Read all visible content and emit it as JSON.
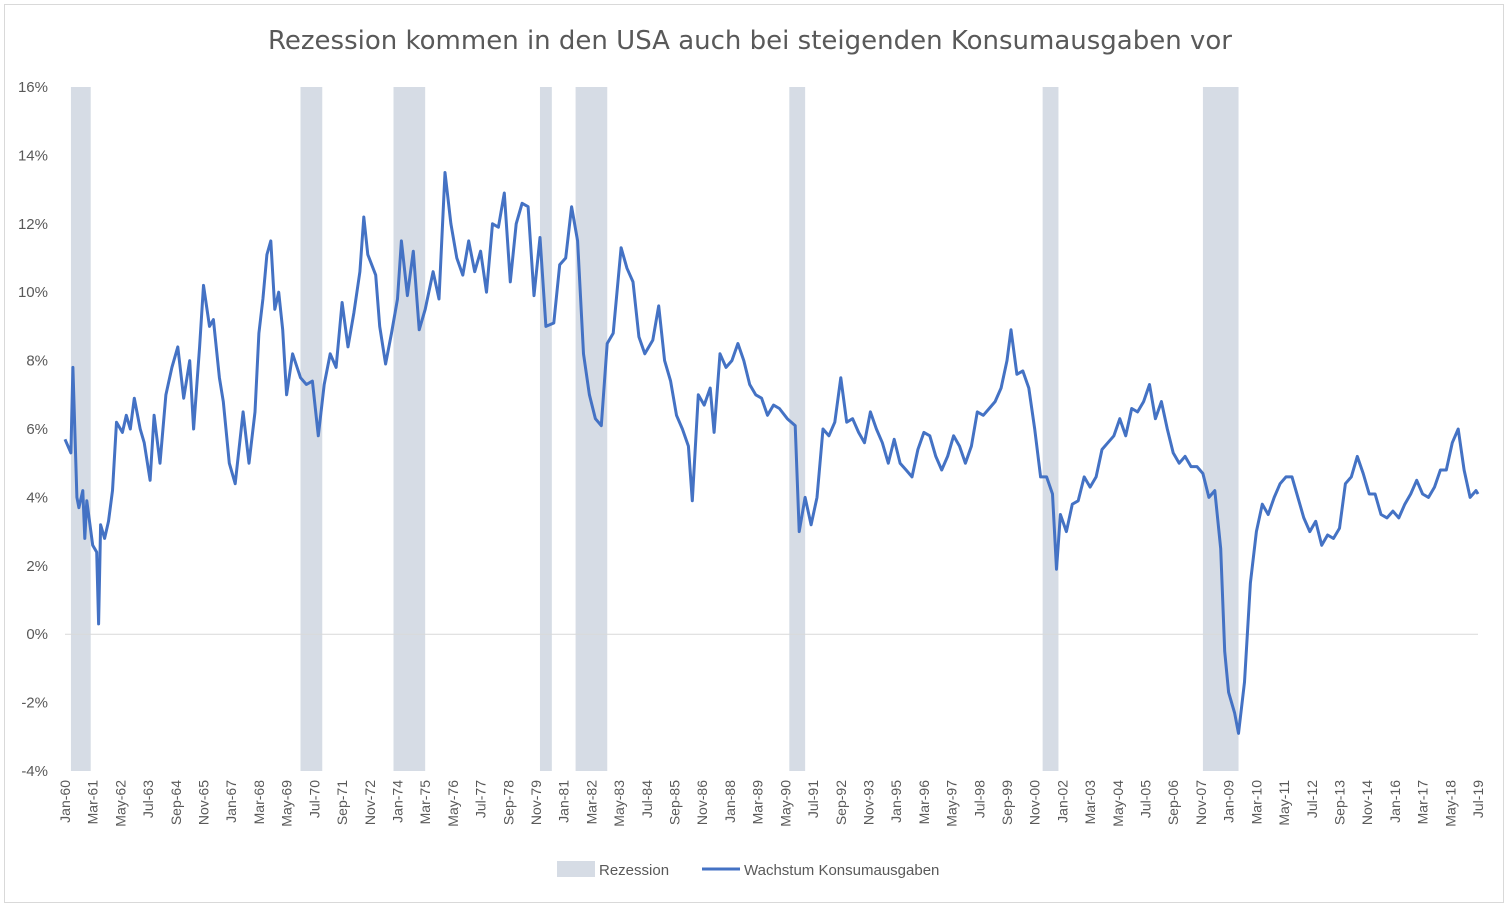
{
  "chart_data": {
    "type": "line",
    "title": "Rezession kommen in den USA auch bei steigenden Konsumausgaben vor",
    "xlabel": "",
    "ylabel": "",
    "ylim": [
      -4,
      16
    ],
    "y_ticks": [
      "16%",
      "14%",
      "12%",
      "10%",
      "8%",
      "6%",
      "4%",
      "2%",
      "0%",
      "-2%",
      "-4%"
    ],
    "x_range": [
      "1960-01",
      "2019-07"
    ],
    "x_ticks": [
      "Jan-60",
      "Mar-61",
      "May-62",
      "Jul-63",
      "Sep-64",
      "Nov-65",
      "Jan-67",
      "Mar-68",
      "May-69",
      "Jul-70",
      "Sep-71",
      "Nov-72",
      "Jan-74",
      "Mar-75",
      "May-76",
      "Jul-77",
      "Sep-78",
      "Nov-79",
      "Jan-81",
      "Mar-82",
      "May-83",
      "Jul-84",
      "Sep-85",
      "Nov-86",
      "Jan-88",
      "Mar-89",
      "May-90",
      "Jul-91",
      "Sep-92",
      "Nov-93",
      "Jan-95",
      "Mar-96",
      "May-97",
      "Jul-98",
      "Sep-99",
      "Nov-00",
      "Jan-02",
      "Mar-03",
      "May-04",
      "Jul-05",
      "Sep-06",
      "Nov-07",
      "Jan-09",
      "Mar-10",
      "May-11",
      "Jul-12",
      "Sep-13",
      "Nov-14",
      "Jan-16",
      "Mar-17",
      "May-18",
      "Jul-19"
    ],
    "grid": "zero-line-only",
    "legend_position": "bottom",
    "series": [
      {
        "name": "Rezession",
        "type": "shaded-periods",
        "color": "#d6dce5",
        "periods": [
          [
            "1960-04",
            "1961-02"
          ],
          [
            "1969-12",
            "1970-11"
          ],
          [
            "1973-11",
            "1975-03"
          ],
          [
            "1980-01",
            "1980-07"
          ],
          [
            "1981-07",
            "1982-11"
          ],
          [
            "1990-07",
            "1991-03"
          ],
          [
            "2001-03",
            "2001-11"
          ],
          [
            "2007-12",
            "2009-06"
          ]
        ]
      },
      {
        "name": "Wachstum Konsumausgaben",
        "type": "line",
        "color": "#4472c4",
        "points": [
          [
            "1960-01",
            5.7
          ],
          [
            "1960-04",
            5.3
          ],
          [
            "1960-05",
            7.8
          ],
          [
            "1960-07",
            4.0
          ],
          [
            "1960-08",
            3.7
          ],
          [
            "1960-10",
            4.2
          ],
          [
            "1960-11",
            2.8
          ],
          [
            "1960-12",
            3.9
          ],
          [
            "1961-03",
            2.6
          ],
          [
            "1961-05",
            2.4
          ],
          [
            "1961-06",
            0.3
          ],
          [
            "1961-07",
            3.2
          ],
          [
            "1961-09",
            2.8
          ],
          [
            "1961-11",
            3.3
          ],
          [
            "1962-01",
            4.2
          ],
          [
            "1962-03",
            6.2
          ],
          [
            "1962-06",
            5.9
          ],
          [
            "1962-08",
            6.4
          ],
          [
            "1962-10",
            6.0
          ],
          [
            "1962-12",
            6.9
          ],
          [
            "1963-03",
            6.0
          ],
          [
            "1963-05",
            5.6
          ],
          [
            "1963-08",
            4.5
          ],
          [
            "1963-10",
            6.4
          ],
          [
            "1964-01",
            5.0
          ],
          [
            "1964-04",
            7.0
          ],
          [
            "1964-07",
            7.8
          ],
          [
            "1964-10",
            8.4
          ],
          [
            "1965-01",
            6.9
          ],
          [
            "1965-04",
            8.0
          ],
          [
            "1965-06",
            6.0
          ],
          [
            "1965-09",
            8.4
          ],
          [
            "1965-11",
            10.2
          ],
          [
            "1966-02",
            9.0
          ],
          [
            "1966-04",
            9.2
          ],
          [
            "1966-07",
            7.5
          ],
          [
            "1966-09",
            6.8
          ],
          [
            "1966-12",
            5.0
          ],
          [
            "1967-03",
            4.4
          ],
          [
            "1967-07",
            6.5
          ],
          [
            "1967-10",
            5.0
          ],
          [
            "1968-01",
            6.5
          ],
          [
            "1968-03",
            8.8
          ],
          [
            "1968-05",
            9.8
          ],
          [
            "1968-07",
            11.1
          ],
          [
            "1968-09",
            11.5
          ],
          [
            "1968-11",
            9.5
          ],
          [
            "1969-01",
            10.0
          ],
          [
            "1969-03",
            8.9
          ],
          [
            "1969-05",
            7.0
          ],
          [
            "1969-08",
            8.2
          ],
          [
            "1969-12",
            7.5
          ],
          [
            "1970-03",
            7.3
          ],
          [
            "1970-06",
            7.4
          ],
          [
            "1970-09",
            5.8
          ],
          [
            "1970-12",
            7.3
          ],
          [
            "1971-03",
            8.2
          ],
          [
            "1971-06",
            7.8
          ],
          [
            "1971-09",
            9.7
          ],
          [
            "1971-12",
            8.4
          ],
          [
            "1972-03",
            9.4
          ],
          [
            "1972-06",
            10.6
          ],
          [
            "1972-08",
            12.2
          ],
          [
            "1972-10",
            11.1
          ],
          [
            "1973-02",
            10.5
          ],
          [
            "1973-04",
            9.0
          ],
          [
            "1973-07",
            7.9
          ],
          [
            "1973-10",
            8.8
          ],
          [
            "1974-01",
            9.8
          ],
          [
            "1974-03",
            11.5
          ],
          [
            "1974-06",
            9.9
          ],
          [
            "1974-09",
            11.2
          ],
          [
            "1974-12",
            8.9
          ],
          [
            "1975-03",
            9.5
          ],
          [
            "1975-07",
            10.6
          ],
          [
            "1975-10",
            9.8
          ],
          [
            "1976-01",
            13.5
          ],
          [
            "1976-04",
            12.0
          ],
          [
            "1976-07",
            11.0
          ],
          [
            "1976-10",
            10.5
          ],
          [
            "1977-01",
            11.5
          ],
          [
            "1977-04",
            10.6
          ],
          [
            "1977-07",
            11.2
          ],
          [
            "1977-10",
            10.0
          ],
          [
            "1978-01",
            12.0
          ],
          [
            "1978-04",
            11.9
          ],
          [
            "1978-07",
            12.9
          ],
          [
            "1978-10",
            10.3
          ],
          [
            "1979-01",
            12.0
          ],
          [
            "1979-04",
            12.6
          ],
          [
            "1979-07",
            12.5
          ],
          [
            "1979-10",
            9.9
          ],
          [
            "1980-01",
            11.6
          ],
          [
            "1980-04",
            9.0
          ],
          [
            "1980-08",
            9.1
          ],
          [
            "1980-11",
            10.8
          ],
          [
            "1981-02",
            11.0
          ],
          [
            "1981-05",
            12.5
          ],
          [
            "1981-08",
            11.5
          ],
          [
            "1981-11",
            8.2
          ],
          [
            "1982-02",
            7.0
          ],
          [
            "1982-05",
            6.3
          ],
          [
            "1982-08",
            6.1
          ],
          [
            "1982-11",
            8.5
          ],
          [
            "1983-02",
            8.8
          ],
          [
            "1983-06",
            11.3
          ],
          [
            "1983-09",
            10.7
          ],
          [
            "1983-12",
            10.3
          ],
          [
            "1984-03",
            8.7
          ],
          [
            "1984-06",
            8.2
          ],
          [
            "1984-10",
            8.6
          ],
          [
            "1985-01",
            9.6
          ],
          [
            "1985-04",
            8.0
          ],
          [
            "1985-07",
            7.4
          ],
          [
            "1985-10",
            6.4
          ],
          [
            "1986-01",
            6.0
          ],
          [
            "1986-04",
            5.5
          ],
          [
            "1986-06",
            3.9
          ],
          [
            "1986-09",
            7.0
          ],
          [
            "1986-12",
            6.7
          ],
          [
            "1987-03",
            7.2
          ],
          [
            "1987-05",
            5.9
          ],
          [
            "1987-08",
            8.2
          ],
          [
            "1987-11",
            7.8
          ],
          [
            "1988-02",
            8.0
          ],
          [
            "1988-05",
            8.5
          ],
          [
            "1988-08",
            8.0
          ],
          [
            "1988-11",
            7.3
          ],
          [
            "1989-02",
            7.0
          ],
          [
            "1989-05",
            6.9
          ],
          [
            "1989-08",
            6.4
          ],
          [
            "1989-11",
            6.7
          ],
          [
            "1990-02",
            6.6
          ],
          [
            "1990-06",
            6.3
          ],
          [
            "1990-10",
            6.1
          ],
          [
            "1990-12",
            3.0
          ],
          [
            "1991-03",
            4.0
          ],
          [
            "1991-06",
            3.2
          ],
          [
            "1991-09",
            4.0
          ],
          [
            "1991-12",
            6.0
          ],
          [
            "1992-03",
            5.8
          ],
          [
            "1992-06",
            6.2
          ],
          [
            "1992-09",
            7.5
          ],
          [
            "1992-12",
            6.2
          ],
          [
            "1993-03",
            6.3
          ],
          [
            "1993-06",
            5.9
          ],
          [
            "1993-09",
            5.6
          ],
          [
            "1993-12",
            6.5
          ],
          [
            "1994-03",
            6.0
          ],
          [
            "1994-06",
            5.6
          ],
          [
            "1994-09",
            5.0
          ],
          [
            "1994-12",
            5.7
          ],
          [
            "1995-03",
            5.0
          ],
          [
            "1995-06",
            4.8
          ],
          [
            "1995-09",
            4.6
          ],
          [
            "1995-12",
            5.4
          ],
          [
            "1996-03",
            5.9
          ],
          [
            "1996-06",
            5.8
          ],
          [
            "1996-09",
            5.2
          ],
          [
            "1996-12",
            4.8
          ],
          [
            "1997-03",
            5.2
          ],
          [
            "1997-06",
            5.8
          ],
          [
            "1997-09",
            5.5
          ],
          [
            "1997-12",
            5.0
          ],
          [
            "1998-03",
            5.5
          ],
          [
            "1998-06",
            6.5
          ],
          [
            "1998-09",
            6.4
          ],
          [
            "1998-12",
            6.6
          ],
          [
            "1999-03",
            6.8
          ],
          [
            "1999-06",
            7.2
          ],
          [
            "1999-09",
            8.0
          ],
          [
            "1999-11",
            8.9
          ],
          [
            "2000-02",
            7.6
          ],
          [
            "2000-05",
            7.7
          ],
          [
            "2000-08",
            7.2
          ],
          [
            "2000-11",
            6.0
          ],
          [
            "2001-02",
            4.6
          ],
          [
            "2001-05",
            4.6
          ],
          [
            "2001-08",
            4.1
          ],
          [
            "2001-10",
            1.9
          ],
          [
            "2001-12",
            3.5
          ],
          [
            "2002-03",
            3.0
          ],
          [
            "2002-06",
            3.8
          ],
          [
            "2002-09",
            3.9
          ],
          [
            "2002-12",
            4.6
          ],
          [
            "2003-03",
            4.3
          ],
          [
            "2003-06",
            4.6
          ],
          [
            "2003-09",
            5.4
          ],
          [
            "2003-12",
            5.6
          ],
          [
            "2004-03",
            5.8
          ],
          [
            "2004-06",
            6.3
          ],
          [
            "2004-09",
            5.8
          ],
          [
            "2004-12",
            6.6
          ],
          [
            "2005-03",
            6.5
          ],
          [
            "2005-06",
            6.8
          ],
          [
            "2005-09",
            7.3
          ],
          [
            "2005-12",
            6.3
          ],
          [
            "2006-03",
            6.8
          ],
          [
            "2006-06",
            6.0
          ],
          [
            "2006-09",
            5.3
          ],
          [
            "2006-12",
            5.0
          ],
          [
            "2007-03",
            5.2
          ],
          [
            "2007-06",
            4.9
          ],
          [
            "2007-09",
            4.9
          ],
          [
            "2007-12",
            4.7
          ],
          [
            "2008-03",
            4.0
          ],
          [
            "2008-06",
            4.2
          ],
          [
            "2008-09",
            2.5
          ],
          [
            "2008-11",
            -0.5
          ],
          [
            "2009-01",
            -1.7
          ],
          [
            "2009-04",
            -2.3
          ],
          [
            "2009-06",
            -2.9
          ],
          [
            "2009-09",
            -1.4
          ],
          [
            "2009-12",
            1.5
          ],
          [
            "2010-03",
            3.0
          ],
          [
            "2010-06",
            3.8
          ],
          [
            "2010-09",
            3.5
          ],
          [
            "2010-12",
            4.0
          ],
          [
            "2011-03",
            4.4
          ],
          [
            "2011-06",
            4.6
          ],
          [
            "2011-09",
            4.6
          ],
          [
            "2011-12",
            4.0
          ],
          [
            "2012-03",
            3.4
          ],
          [
            "2012-06",
            3.0
          ],
          [
            "2012-09",
            3.3
          ],
          [
            "2012-12",
            2.6
          ],
          [
            "2013-03",
            2.9
          ],
          [
            "2013-06",
            2.8
          ],
          [
            "2013-09",
            3.1
          ],
          [
            "2013-12",
            4.4
          ],
          [
            "2014-03",
            4.6
          ],
          [
            "2014-06",
            5.2
          ],
          [
            "2014-09",
            4.7
          ],
          [
            "2014-12",
            4.1
          ],
          [
            "2015-03",
            4.1
          ],
          [
            "2015-06",
            3.5
          ],
          [
            "2015-09",
            3.4
          ],
          [
            "2015-12",
            3.6
          ],
          [
            "2016-03",
            3.4
          ],
          [
            "2016-06",
            3.8
          ],
          [
            "2016-09",
            4.1
          ],
          [
            "2016-12",
            4.5
          ],
          [
            "2017-03",
            4.1
          ],
          [
            "2017-06",
            4.0
          ],
          [
            "2017-09",
            4.3
          ],
          [
            "2017-12",
            4.8
          ],
          [
            "2018-03",
            4.8
          ],
          [
            "2018-06",
            5.6
          ],
          [
            "2018-09",
            6.0
          ],
          [
            "2018-12",
            4.8
          ],
          [
            "2019-03",
            4.0
          ],
          [
            "2019-06",
            4.2
          ],
          [
            "2019-07",
            4.1
          ]
        ]
      }
    ]
  }
}
